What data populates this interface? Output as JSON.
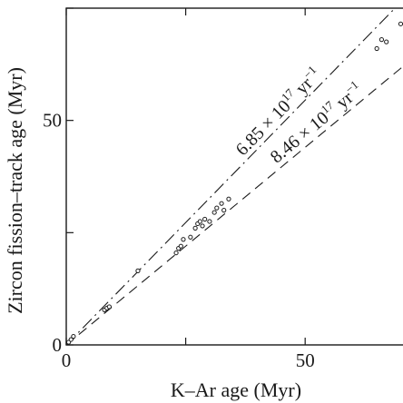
{
  "chart_data": {
    "type": "scatter",
    "xlabel": "K–Ar age (Myr)",
    "ylabel": "Zircon fission–track age (Myr)",
    "xlim": [
      0,
      72
    ],
    "ylim": [
      0,
      75
    ],
    "x_ticks": [
      {
        "value": 0,
        "label": "0"
      },
      {
        "value": 50,
        "label": "50"
      }
    ],
    "y_ticks": [
      {
        "value": 0,
        "label": "0"
      },
      {
        "value": 50,
        "label": "50"
      }
    ],
    "minor_tick_step": 25,
    "grid": false,
    "series": [
      {
        "style": "points",
        "points": [
          [
            0.5,
            0.6
          ],
          [
            1,
            1.2
          ],
          [
            1.5,
            1.9
          ],
          [
            8,
            7.8
          ],
          [
            8.5,
            8.2
          ],
          [
            9,
            8.5
          ],
          [
            15,
            16.5
          ],
          [
            23,
            20.5
          ],
          [
            23.5,
            21.5
          ],
          [
            24,
            22
          ],
          [
            24.5,
            23.5
          ],
          [
            26,
            24
          ],
          [
            27,
            26
          ],
          [
            27.5,
            27
          ],
          [
            28,
            27.5
          ],
          [
            28.5,
            26.5
          ],
          [
            29,
            28
          ],
          [
            30,
            27.5
          ],
          [
            31,
            29.5
          ],
          [
            31.5,
            30.5
          ],
          [
            32.5,
            31.5
          ],
          [
            33,
            30
          ],
          [
            34,
            32.5
          ],
          [
            65,
            66
          ],
          [
            66,
            68
          ],
          [
            67,
            67.5
          ],
          [
            70,
            71.5
          ]
        ]
      },
      {
        "style": "dash-dot",
        "slope": 1.09,
        "label_value": "6.85",
        "label_suffix": "× 10",
        "label_exp": "17",
        "label_unit": "yr",
        "label_unit_exp": "−1"
      },
      {
        "style": "dashed",
        "slope": 0.88,
        "label_value": "8.46",
        "label_suffix": "× 10",
        "label_exp": "17",
        "label_unit": "yr",
        "label_unit_exp": "−1"
      }
    ]
  }
}
